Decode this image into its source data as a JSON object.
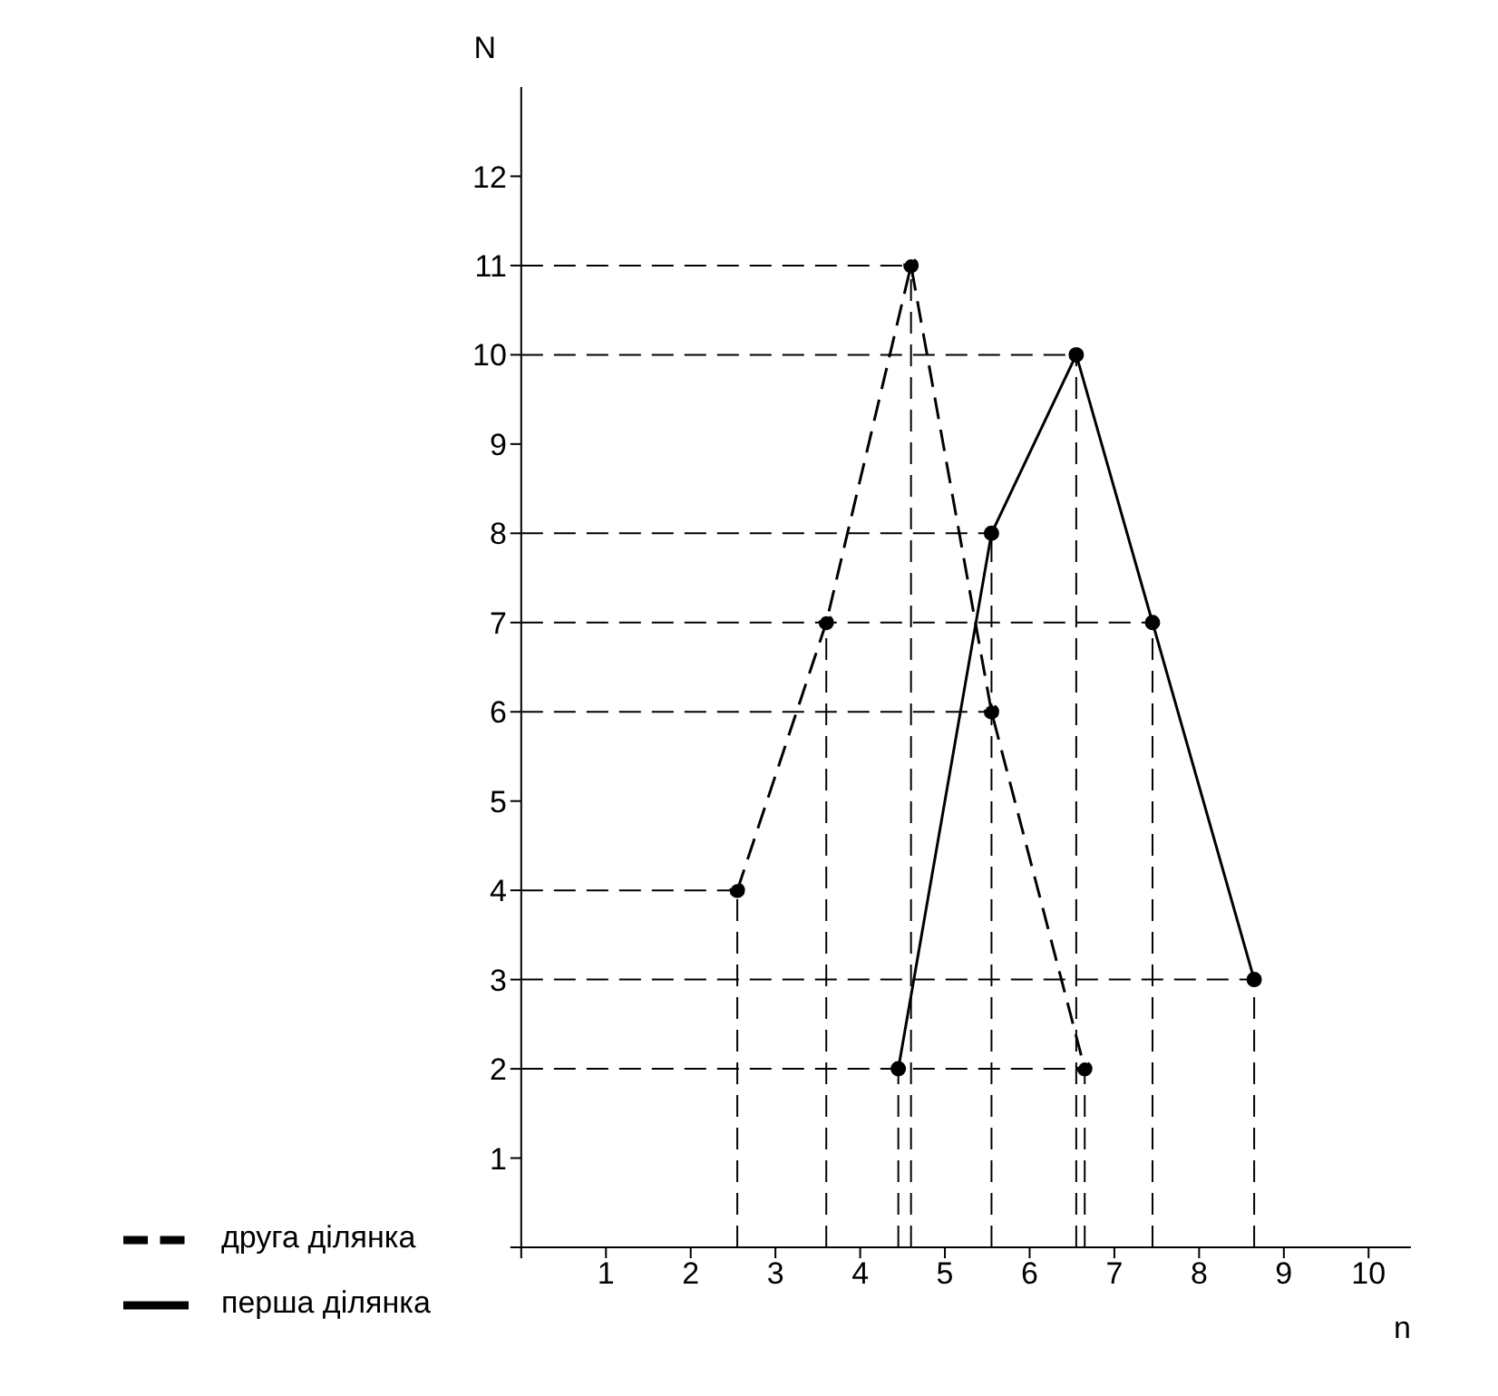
{
  "chart_data": {
    "type": "line",
    "xlabel": "n",
    "ylabel": "N",
    "xlim": [
      0,
      10.5
    ],
    "xticks": [
      {
        "value": 0,
        "label": null
      },
      1,
      2,
      3,
      4,
      5,
      6,
      7,
      8,
      9,
      10
    ],
    "ylim": [
      0,
      13
    ],
    "yticks": [
      {
        "value": 0,
        "label": null
      },
      1,
      2,
      3,
      4,
      5,
      6,
      7,
      8,
      9,
      10,
      11,
      12
    ],
    "series": [
      {
        "name": "перша ділянка",
        "color": "#000000",
        "line_style": "solid",
        "x": [
          4.45,
          5.55,
          6.55,
          7.45,
          8.65
        ],
        "values": [
          2,
          8,
          10,
          7,
          3
        ]
      },
      {
        "name": "друга ділянка",
        "color": "#000000",
        "line_style": "dashed",
        "x": [
          2.55,
          3.6,
          4.6,
          5.55,
          6.65
        ],
        "values": [
          4,
          7,
          11,
          6,
          2
        ]
      }
    ],
    "ref_lines": [
      {
        "axis": "x",
        "value": 2.55,
        "color": "#000000",
        "line_style": "dashed"
      },
      {
        "axis": "x",
        "value": 3.6,
        "color": "#000000",
        "line_style": "dashed"
      },
      {
        "axis": "x",
        "value": 4.45,
        "color": "#000000",
        "line_style": "dashed"
      },
      {
        "axis": "x",
        "value": 4.6,
        "color": "#000000",
        "line_style": "dashed"
      },
      {
        "axis": "x",
        "value": 5.55,
        "color": "#000000",
        "line_style": "dashed"
      },
      {
        "axis": "x",
        "value": 6.55,
        "color": "#000000",
        "line_style": "dashed"
      },
      {
        "axis": "x",
        "value": 6.65,
        "color": "#000000",
        "line_style": "dashed"
      },
      {
        "axis": "x",
        "value": 7.45,
        "color": "#000000",
        "line_style": "dashed"
      },
      {
        "axis": "x",
        "value": 8.65,
        "color": "#000000",
        "line_style": "dashed"
      },
      {
        "axis": "y",
        "value": 2,
        "color": "#000000",
        "line_style": "dashed"
      },
      {
        "axis": "y",
        "value": 3,
        "color": "#000000",
        "line_style": "dashed"
      },
      {
        "axis": "y",
        "value": 4,
        "color": "#000000",
        "line_style": "dashed"
      },
      {
        "axis": "y",
        "value": 6,
        "color": "#000000",
        "line_style": "dashed"
      },
      {
        "axis": "y",
        "value": 7,
        "color": "#000000",
        "line_style": "dashed"
      },
      {
        "axis": "y",
        "value": 8,
        "color": "#000000",
        "line_style": "dashed"
      },
      {
        "axis": "y",
        "value": 10,
        "color": "#000000",
        "line_style": "dashed"
      },
      {
        "axis": "y",
        "value": 11,
        "color": "#000000",
        "line_style": "dashed"
      }
    ],
    "marker": "circle",
    "grid": false,
    "legend": "bottom"
  }
}
